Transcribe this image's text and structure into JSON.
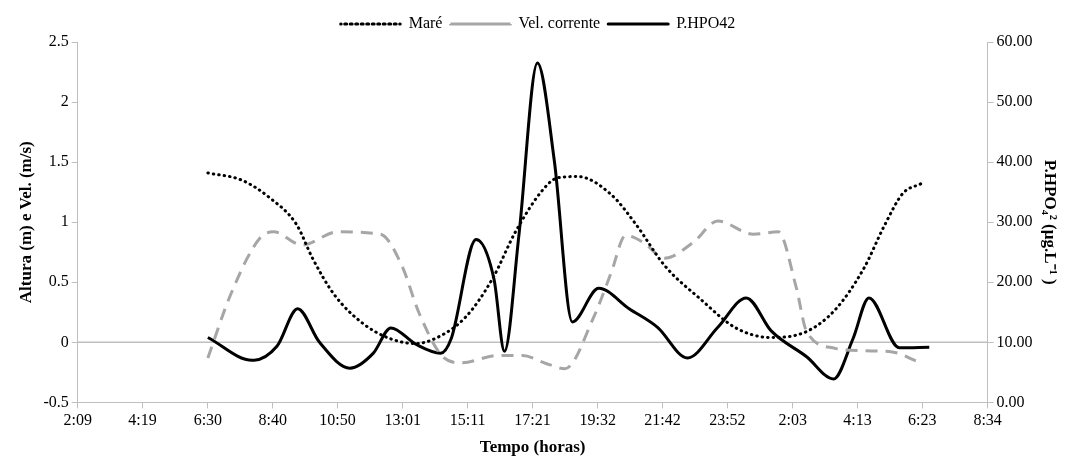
{
  "chart_data": {
    "type": "line",
    "xlabel": "Tempo (horas)",
    "ylabel": "Altura (m) e Vel. (m/s)",
    "y2label": "P.HPO₄² (µg.L⁻¹ )",
    "xlim": [
      "--01-01T02:09",
      "--01-02T08:34"
    ],
    "xticks": [
      {
        "value": "--01-01T02:09",
        "label": "2:09"
      },
      {
        "value": "--01-01T04:19",
        "label": "4:19"
      },
      {
        "value": "--01-01T06:30",
        "label": "6:30"
      },
      {
        "value": "--01-01T08:40",
        "label": "8:40"
      },
      {
        "value": "--01-01T10:50",
        "label": "10:50"
      },
      {
        "value": "--01-01T13:01",
        "label": "13:01"
      },
      {
        "value": "--01-01T15:11",
        "label": "15:11"
      },
      {
        "value": "--01-01T17:21",
        "label": "17:21"
      },
      {
        "value": "--01-01T19:32",
        "label": "19:32"
      },
      {
        "value": "--01-01T21:42",
        "label": "21:42"
      },
      {
        "value": "--01-01T23:52",
        "label": "23:52"
      },
      {
        "value": "--01-02T02:03",
        "label": "2:03"
      },
      {
        "value": "--01-02T04:13",
        "label": "4:13"
      },
      {
        "value": "--01-02T06:23",
        "label": "6:23"
      },
      {
        "value": "--01-02T08:34",
        "label": "8:34"
      }
    ],
    "ylim": [
      -0.5,
      2.5
    ],
    "yticks": [
      -0.5,
      0,
      0.5,
      1,
      1.5,
      2,
      2.5
    ],
    "y2lim": [
      0,
      60
    ],
    "y2ticks": [
      {
        "value": 0,
        "label": "0.00"
      },
      {
        "value": 10,
        "label": "10.00"
      },
      {
        "value": 20,
        "label": "20.00"
      },
      {
        "value": 30,
        "label": "30.00"
      },
      {
        "value": 40,
        "label": "40.00"
      },
      {
        "value": 50,
        "label": "50.00"
      },
      {
        "value": 60,
        "label": "60.00"
      }
    ],
    "grid": false,
    "legend": "top",
    "marker": "none",
    "ref_lines": [
      {
        "axis": "y",
        "value": 0,
        "color": "#bfbfbf"
      }
    ],
    "series": [
      {
        "name": "Maré",
        "color": "#000000",
        "line_style": "dotted",
        "x": [
          "--01-01T06:30",
          "--01-01T07:38",
          "--01-01T08:35",
          "--01-01T09:28",
          "--01-01T10:00",
          "--01-01T10:43",
          "--01-01T11:40",
          "--01-01T12:36",
          "--01-01T13:27",
          "--01-01T14:10",
          "--01-01T15:07",
          "--01-01T16:01",
          "--01-01T16:47",
          "--01-01T17:44",
          "--01-01T18:12",
          "--01-01T18:52",
          "--01-01T19:59",
          "--01-01T20:49",
          "--01-01T21:46",
          "--01-01T22:58",
          "--01-02T00:09",
          "--01-02T01:20",
          "--01-02T02:31",
          "--01-02T03:28",
          "--01-02T04:25",
          "--01-02T05:08",
          "--01-02T05:44",
          "--01-02T06:20"
        ],
        "values": [
          1.41,
          1.35,
          1.2,
          0.98,
          0.7,
          0.4,
          0.16,
          0.03,
          -0.01,
          0.04,
          0.21,
          0.53,
          0.92,
          1.28,
          1.37,
          1.38,
          1.23,
          0.98,
          0.64,
          0.36,
          0.12,
          0.04,
          0.09,
          0.27,
          0.61,
          0.98,
          1.24,
          1.32
        ]
      },
      {
        "name": "Vel. corrente",
        "color": "#a6a6a6",
        "line_style": "dashed",
        "x": [
          "--01-01T06:30",
          "--01-01T07:16",
          "--01-01T08:13",
          "--01-01T08:42",
          "--01-01T09:39",
          "--01-01T10:50",
          "--01-01T12:16",
          "--01-01T12:59",
          "--01-01T13:34",
          "--01-01T14:24",
          "--01-01T14:59",
          "--01-01T16:11",
          "--01-01T17:01",
          "--01-01T17:51",
          "--01-01T18:26",
          "--01-01T19:24",
          "--01-01T19:59",
          "--01-01T20:28",
          "--01-01T21:04",
          "--01-01T21:46",
          "--01-01T22:43",
          "--01-01T23:33",
          "--01-02T00:44",
          "--01-02T01:34",
          "--01-02T02:10",
          "--01-02T02:31",
          "--01-02T03:28",
          "--01-02T04:25",
          "--01-02T05:23",
          "--01-02T06:13"
        ],
        "values": [
          -0.13,
          0.4,
          0.86,
          0.92,
          0.81,
          0.92,
          0.9,
          0.64,
          0.24,
          -0.13,
          -0.17,
          -0.11,
          -0.11,
          -0.18,
          -0.22,
          0.21,
          0.58,
          0.89,
          0.83,
          0.7,
          0.83,
          1.01,
          0.9,
          0.92,
          0.46,
          0.09,
          -0.05,
          -0.07,
          -0.08,
          -0.16
        ]
      },
      {
        "name": "P.HPO42",
        "color": "#000000",
        "line_style": "solid",
        "axis": "y2",
        "x": [
          "--01-01T06:30",
          "--01-01T07:59",
          "--01-01T08:49",
          "--01-01T09:30",
          "--01-01T10:14",
          "--01-01T11:15",
          "--01-01T12:02",
          "--01-01T12:37",
          "--01-01T13:27",
          "--01-01T14:17",
          "--01-01T14:38",
          "--01-01T15:28",
          "--01-01T16:04",
          "--01-01T16:25",
          "--01-01T16:54",
          "--01-01T17:31",
          "--01-01T18:05",
          "--01-01T18:41",
          "--01-01T19:34",
          "--01-01T20:35",
          "--01-01T21:32",
          "--01-01T22:32",
          "--01-01T23:33",
          "--01-02T00:30",
          "--01-02T01:20",
          "--01-02T02:31",
          "--01-02T03:25",
          "--01-02T04:04",
          "--01-02T04:36",
          "--01-02T05:37",
          "--01-02T06:37"
        ],
        "values": [
          10.8,
          7.0,
          9.4,
          15.6,
          10.0,
          5.7,
          8.2,
          12.4,
          9.7,
          8.2,
          10.6,
          27.1,
          20.5,
          8.5,
          27.9,
          56.5,
          40.2,
          13.4,
          19.0,
          15.6,
          12.5,
          7.4,
          12.5,
          17.4,
          11.9,
          7.6,
          3.9,
          10.6,
          17.4,
          9.1,
          9.2
        ]
      }
    ]
  }
}
